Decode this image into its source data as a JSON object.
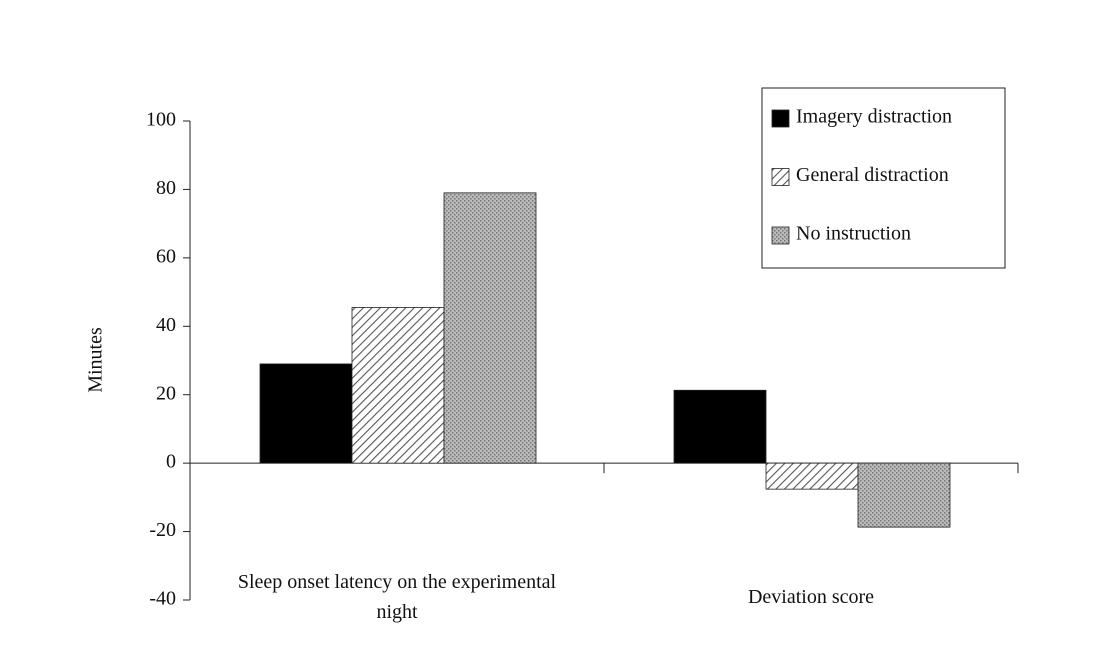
{
  "chart_data": {
    "type": "bar",
    "y_label": "Minutes",
    "categories": [
      "Sleep onset latency on the experimental night",
      "Deviation score"
    ],
    "series": [
      {
        "name": "Imagery distraction",
        "color": "#000000",
        "pattern": "solid",
        "values": [
          29,
          21.3
        ]
      },
      {
        "name": "General distraction",
        "color": "#555555",
        "pattern": "hatch",
        "values": [
          45.5,
          -7.6
        ]
      },
      {
        "name": "No instruction",
        "color": "#777777",
        "pattern": "dots",
        "values": [
          79,
          -18.7
        ]
      }
    ],
    "ylim": [
      -40,
      100
    ],
    "yticks": [
      -40,
      -20,
      0,
      20,
      40,
      60,
      80,
      100
    ],
    "grid": false,
    "legend": "upper right"
  }
}
